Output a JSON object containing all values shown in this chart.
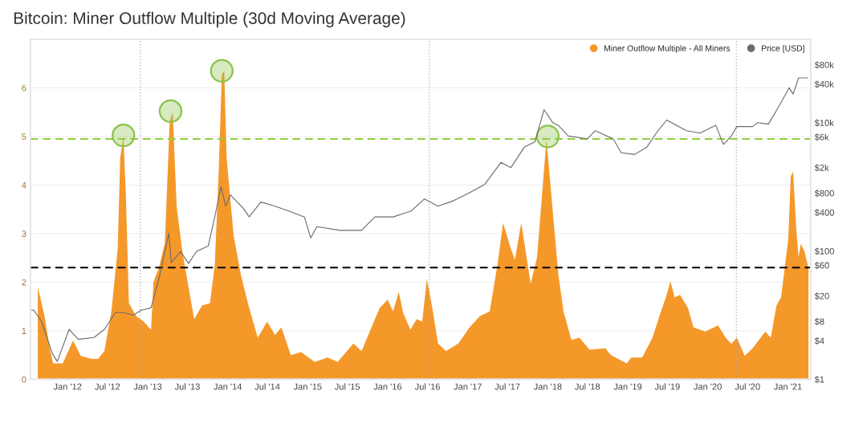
{
  "chart_data": {
    "type": "area",
    "title": "Bitcoin: Miner Outflow Multiple (30d Moving Average)",
    "xlim": [
      "2011-07-15",
      "2021-04-15"
    ],
    "xticks": [
      {
        "value": "2012-01-01",
        "label": "Jan '12"
      },
      {
        "value": "2012-07-01",
        "label": "Jul '12"
      },
      {
        "value": "2013-01-01",
        "label": "Jan '13"
      },
      {
        "value": "2013-07-01",
        "label": "Jul '13"
      },
      {
        "value": "2014-01-01",
        "label": "Jan '14"
      },
      {
        "value": "2014-07-01",
        "label": "Jul '14"
      },
      {
        "value": "2015-01-01",
        "label": "Jan '15"
      },
      {
        "value": "2015-07-01",
        "label": "Jul '15"
      },
      {
        "value": "2016-01-01",
        "label": "Jan '16"
      },
      {
        "value": "2016-07-01",
        "label": "Jul '16"
      },
      {
        "value": "2017-01-01",
        "label": "Jan '17"
      },
      {
        "value": "2017-07-01",
        "label": "Jul '17"
      },
      {
        "value": "2018-01-01",
        "label": "Jan '18"
      },
      {
        "value": "2018-07-01",
        "label": "Jul '18"
      },
      {
        "value": "2019-01-01",
        "label": "Jan '19"
      },
      {
        "value": "2019-07-01",
        "label": "Jul '19"
      },
      {
        "value": "2020-01-01",
        "label": "Jan '20"
      },
      {
        "value": "2020-07-01",
        "label": "Jul '20"
      },
      {
        "value": "2021-01-01",
        "label": "Jan '21"
      }
    ],
    "ylim": [
      0,
      7
    ],
    "yticks": [
      0,
      1,
      2,
      3,
      4,
      5,
      6
    ],
    "y2lim": [
      1,
      200000
    ],
    "y2ticks": [
      {
        "value": 1,
        "label": "$1"
      },
      {
        "value": 4,
        "label": "$4"
      },
      {
        "value": 8,
        "label": "$8"
      },
      {
        "value": 20,
        "label": "$20"
      },
      {
        "value": 60,
        "label": "$60"
      },
      {
        "value": 100,
        "label": "$100"
      },
      {
        "value": 400,
        "label": "$400"
      },
      {
        "value": 800,
        "label": "$800"
      },
      {
        "value": 2000,
        "label": "$2k"
      },
      {
        "value": 6000,
        "label": "$6k"
      },
      {
        "value": 10000,
        "label": "$10k"
      },
      {
        "value": 40000,
        "label": "$40k"
      },
      {
        "value": 80000,
        "label": "$80k"
      }
    ],
    "log": "y2",
    "grid": "y",
    "legend": "top right",
    "ref_lines": [
      {
        "axis": "y",
        "value": 4.95,
        "color": "#8fce3c",
        "line_style": "dashed"
      },
      {
        "axis": "y",
        "value": 2.3,
        "color": "#000000",
        "line_style": "dashed"
      },
      {
        "axis": "x",
        "value": "2012-11-28",
        "color": "#aaaaaa",
        "line_style": "dotted"
      },
      {
        "axis": "x",
        "value": "2016-07-09",
        "color": "#aaaaaa",
        "line_style": "dotted"
      },
      {
        "axis": "x",
        "value": "2020-05-11",
        "color": "#aaaaaa",
        "line_style": "dotted"
      }
    ],
    "series": [
      {
        "name": "Miner Outflow Multiple - All Miners",
        "color": "#f5982a",
        "x": [
          "2011-08-18",
          "2011-09-18",
          "2011-10-09",
          "2011-10-27",
          "2011-12-10",
          "2012-01-26",
          "2012-03-01",
          "2012-04-20",
          "2012-05-19",
          "2012-06-17",
          "2012-07-19",
          "2012-08-17",
          "2012-08-28",
          "2012-09-12",
          "2012-09-23",
          "2012-10-07",
          "2012-11-09",
          "2012-12-14",
          "2013-01-16",
          "2013-01-27",
          "2013-02-21",
          "2013-03-20",
          "2013-04-11",
          "2013-04-25",
          "2013-05-13",
          "2013-06-08",
          "2013-07-06",
          "2013-08-01",
          "2013-09-06",
          "2013-10-12",
          "2013-11-03",
          "2013-11-21",
          "2013-12-05",
          "2013-12-16",
          "2013-12-27",
          "2014-01-28",
          "2014-03-03",
          "2014-04-09",
          "2014-05-18",
          "2014-06-30",
          "2014-08-05",
          "2014-09-03",
          "2014-09-28",
          "2014-10-16",
          "2014-12-02",
          "2015-02-02",
          "2015-04-02",
          "2015-05-18",
          "2015-07-29",
          "2015-09-04",
          "2015-11-04",
          "2015-11-26",
          "2016-01-01",
          "2016-01-26",
          "2016-02-21",
          "2016-03-12",
          "2016-04-14",
          "2016-05-12",
          "2016-06-07",
          "2016-06-28",
          "2016-07-23",
          "2016-08-18",
          "2016-09-23",
          "2016-11-19",
          "2017-01-09",
          "2017-02-25",
          "2017-04-11",
          "2017-05-16",
          "2017-06-11",
          "2017-07-17",
          "2017-08-04",
          "2017-09-02",
          "2017-09-28",
          "2017-10-15",
          "2017-11-13",
          "2017-12-26",
          "2018-01-24",
          "2018-02-19",
          "2018-03-14",
          "2018-04-19",
          "2018-05-25",
          "2018-07-11",
          "2018-09-21",
          "2018-10-16",
          "2018-12-27",
          "2019-01-18",
          "2019-03-08",
          "2019-04-24",
          "2019-05-30",
          "2019-06-24",
          "2019-07-15",
          "2019-08-03",
          "2019-08-28",
          "2019-10-03",
          "2019-10-28",
          "2019-12-21",
          "2020-02-17",
          "2020-03-23",
          "2020-04-18",
          "2020-05-13",
          "2020-06-18",
          "2020-07-24",
          "2020-09-20",
          "2020-10-15",
          "2020-11-10",
          "2020-12-01",
          "2021-01-03",
          "2021-01-14",
          "2021-01-25",
          "2021-02-08",
          "2021-02-19",
          "2021-03-01",
          "2021-03-18",
          "2021-04-05"
        ],
        "values": [
          1.9,
          1.3,
          0.7,
          0.33,
          0.33,
          0.8,
          0.48,
          0.42,
          0.42,
          0.58,
          1.4,
          2.7,
          4.55,
          5.0,
          3.8,
          1.57,
          1.3,
          1.19,
          1.02,
          2.0,
          2.3,
          2.8,
          5.3,
          5.5,
          3.55,
          2.63,
          1.9,
          1.24,
          1.52,
          1.57,
          2.35,
          4.3,
          6.26,
          6.36,
          4.55,
          2.96,
          2.13,
          1.47,
          0.86,
          1.19,
          0.91,
          1.07,
          0.74,
          0.5,
          0.56,
          0.36,
          0.45,
          0.36,
          0.74,
          0.58,
          1.24,
          1.47,
          1.64,
          1.4,
          1.8,
          1.36,
          1.02,
          1.24,
          1.19,
          2.07,
          1.47,
          0.74,
          0.58,
          0.74,
          1.07,
          1.3,
          1.4,
          2.35,
          3.22,
          2.68,
          2.46,
          3.22,
          2.46,
          1.97,
          2.51,
          4.94,
          3.45,
          2.13,
          1.4,
          0.81,
          0.86,
          0.61,
          0.64,
          0.5,
          0.33,
          0.45,
          0.45,
          0.86,
          1.36,
          1.69,
          2.02,
          1.69,
          1.74,
          1.47,
          1.07,
          0.98,
          1.11,
          0.86,
          0.73,
          0.86,
          0.48,
          0.64,
          0.98,
          0.86,
          1.52,
          1.69,
          2.89,
          4.17,
          4.28,
          3.12,
          2.51,
          2.79,
          2.63,
          2.3
        ]
      },
      {
        "name": "Price [USD]",
        "type": "line",
        "axis": "y2",
        "color": "#6b6b6b",
        "x": [
          "2011-07-20",
          "2011-07-30",
          "2011-09-04",
          "2011-10-24",
          "2011-11-15",
          "2012-01-08",
          "2012-02-19",
          "2012-05-01",
          "2012-06-17",
          "2012-08-06",
          "2012-09-12",
          "2012-10-28",
          "2012-12-03",
          "2013-01-16",
          "2013-02-24",
          "2013-04-07",
          "2013-04-18",
          "2013-05-31",
          "2013-07-06",
          "2013-08-11",
          "2013-10-04",
          "2013-11-03",
          "2013-12-01",
          "2013-12-23",
          "2014-01-13",
          "2014-03-14",
          "2014-04-09",
          "2014-06-01",
          "2014-08-05",
          "2014-10-06",
          "2014-12-17",
          "2015-01-15",
          "2015-02-12",
          "2015-05-29",
          "2015-09-04",
          "2015-11-04",
          "2016-01-26",
          "2016-04-17",
          "2016-06-17",
          "2016-08-18",
          "2016-10-29",
          "2017-01-09",
          "2017-03-20",
          "2017-06-01",
          "2017-07-17",
          "2017-09-17",
          "2017-11-03",
          "2017-12-15",
          "2018-01-24",
          "2018-02-19",
          "2018-04-05",
          "2018-07-01",
          "2018-08-05",
          "2018-10-27",
          "2018-12-02",
          "2019-02-02",
          "2019-03-30",
          "2019-05-19",
          "2019-06-28",
          "2019-09-26",
          "2019-11-27",
          "2020-02-07",
          "2020-03-13",
          "2020-04-18",
          "2020-05-13",
          "2020-07-24",
          "2020-08-15",
          "2020-10-04",
          "2020-11-21",
          "2021-01-07",
          "2021-01-25",
          "2021-02-19",
          "2021-04-01"
        ],
        "values": [
          12,
          12,
          8,
          2.5,
          1.9,
          6,
          4.2,
          4.5,
          6,
          11,
          11,
          10,
          12,
          13,
          41,
          190,
          66,
          98,
          64,
          98,
          120,
          340,
          1000,
          500,
          750,
          460,
          340,
          580,
          500,
          420,
          340,
          160,
          240,
          210,
          210,
          340,
          340,
          420,
          650,
          500,
          610,
          810,
          1100,
          2400,
          2000,
          4200,
          5000,
          16000,
          10000,
          9000,
          6200,
          5600,
          7500,
          5600,
          3400,
          3200,
          4200,
          7500,
          11000,
          7500,
          6900,
          9100,
          4600,
          6200,
          8700,
          8700,
          10000,
          9500,
          18000,
          35000,
          28000,
          50000,
          50000
        ]
      },
      {
        "type": "scatter",
        "marker": "circle",
        "color": "#8bc34a",
        "x": [
          "2012-09-12",
          "2013-04-15",
          "2013-12-05",
          "2018-01-01"
        ],
        "values": [
          5.02,
          5.52,
          6.35,
          5.0
        ]
      }
    ]
  }
}
